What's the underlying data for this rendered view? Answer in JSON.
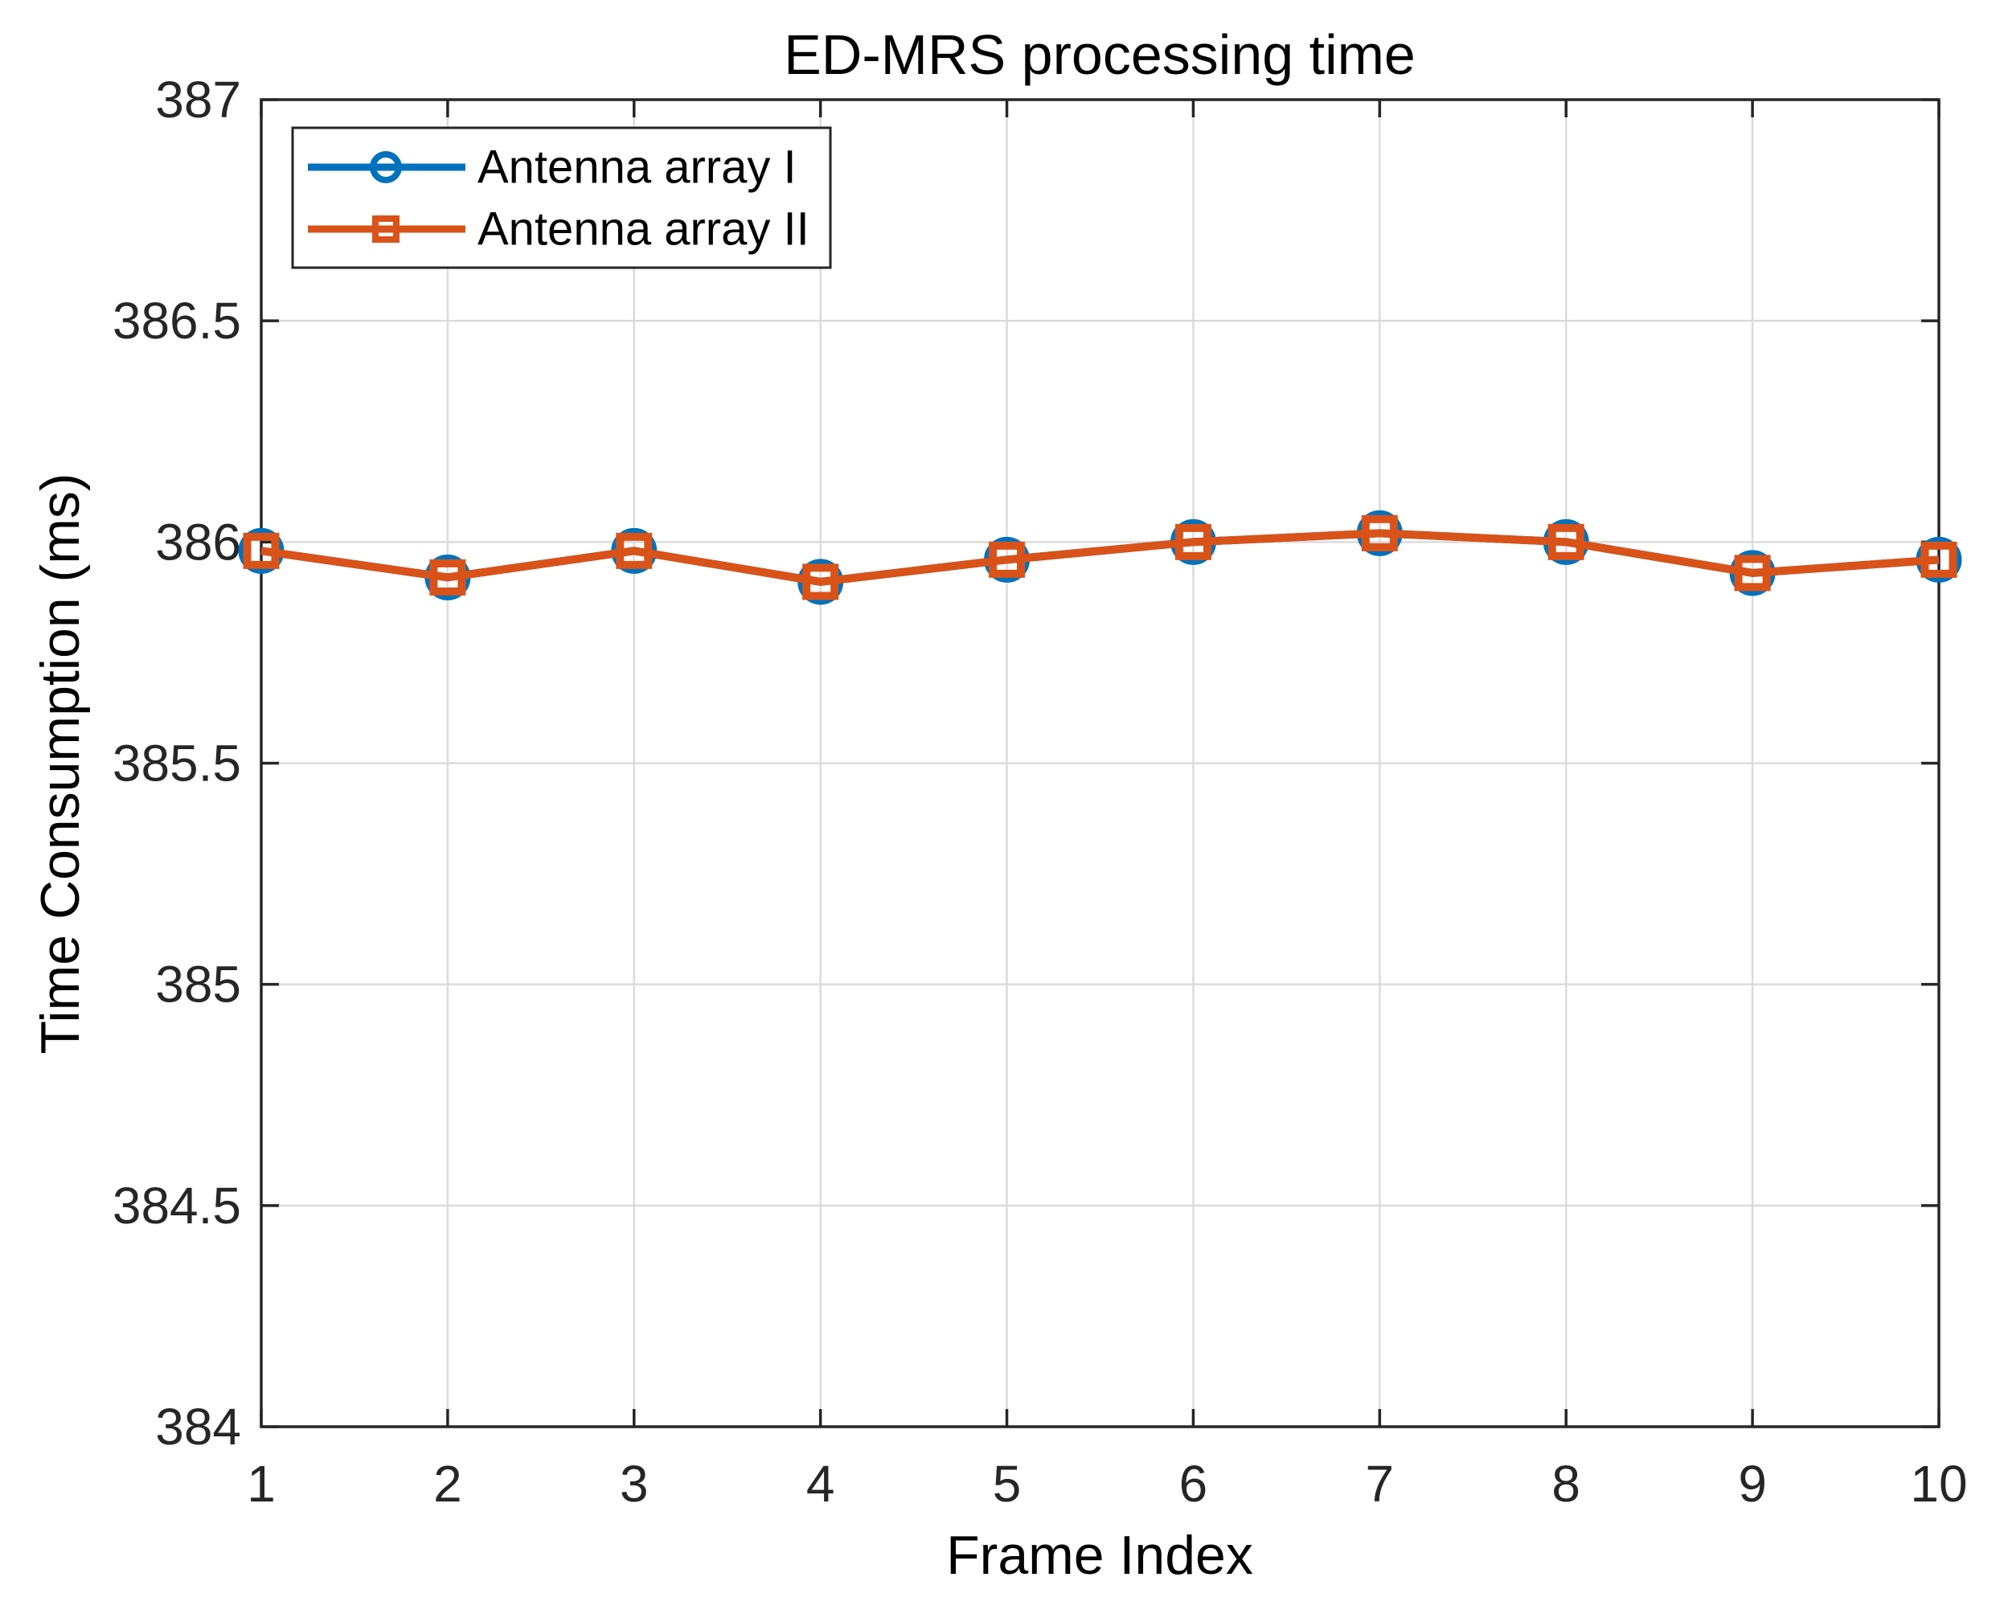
{
  "page": {
    "background": "#ffffff"
  },
  "chart_data": {
    "type": "line",
    "title": "ED-MRS processing time",
    "xlabel": "Frame Index",
    "ylabel": "Time Consumption (ms)",
    "x": [
      1,
      2,
      3,
      4,
      5,
      6,
      7,
      8,
      9,
      10
    ],
    "xlim": [
      1,
      10
    ],
    "ylim": [
      384,
      387
    ],
    "xticks": [
      1,
      2,
      3,
      4,
      5,
      6,
      7,
      8,
      9,
      10
    ],
    "xtick_labels": [
      "1",
      "2",
      "3",
      "4",
      "5",
      "6",
      "7",
      "8",
      "9",
      "10"
    ],
    "yticks": [
      384,
      384.5,
      385,
      385.5,
      386,
      386.5,
      387
    ],
    "ytick_labels": [
      "384",
      "384.5",
      "385",
      "385.5",
      "386",
      "386.5",
      "387"
    ],
    "grid": true,
    "grid_color": "#dbdbdb",
    "axis_color": "#262626",
    "legend": {
      "position": "top-left",
      "border_color": "#262626",
      "background": "#ffffff"
    },
    "series": [
      {
        "name": "Antenna array I",
        "color": "#0072BD",
        "marker": "circle",
        "values": [
          385.98,
          385.92,
          385.98,
          385.91,
          385.96,
          386.0,
          386.02,
          386.0,
          385.93,
          385.96
        ]
      },
      {
        "name": "Antenna array II",
        "color": "#D95319",
        "marker": "square",
        "values": [
          385.98,
          385.92,
          385.98,
          385.91,
          385.96,
          386.0,
          386.02,
          386.0,
          385.93,
          385.96
        ]
      }
    ]
  }
}
